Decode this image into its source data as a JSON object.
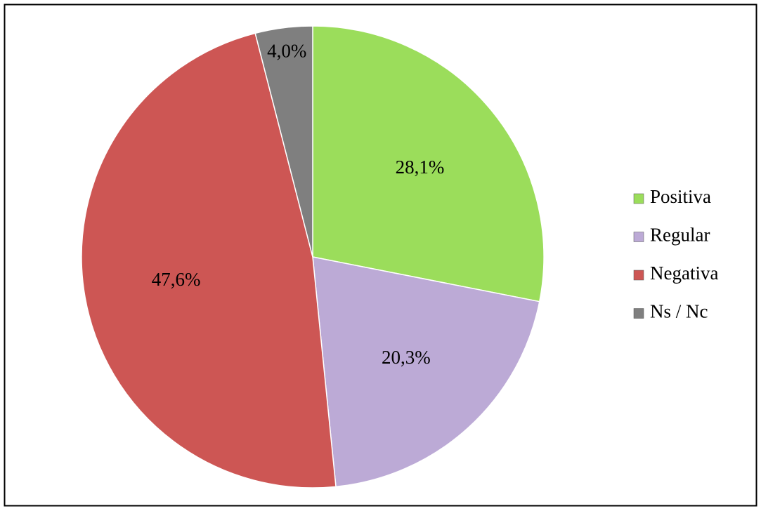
{
  "chart_data": {
    "type": "pie",
    "categories": [
      "Positiva",
      "Regular",
      "Negativa",
      "Ns / Nc"
    ],
    "values": [
      28.1,
      20.3,
      47.6,
      4.0
    ],
    "value_labels": [
      "28,1%",
      "20,3%",
      "47,6%",
      "4,0%"
    ],
    "colors": [
      "#9bdd5b",
      "#bcaad6",
      "#cd5654",
      "#7f7f7f"
    ],
    "legend": "right"
  }
}
